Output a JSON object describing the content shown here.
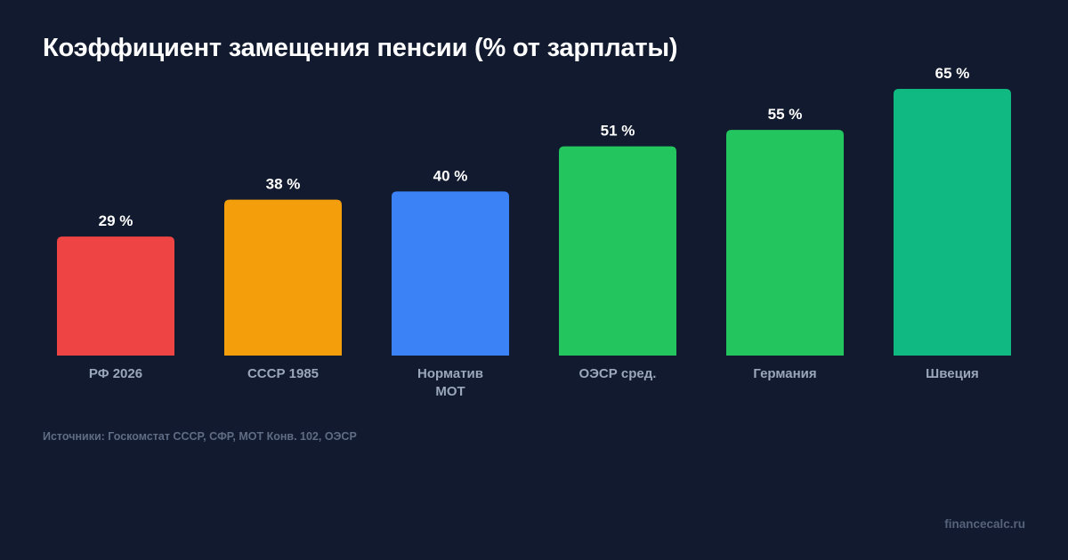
{
  "title": "Коэффициент замещения пенсии (% от зарплаты)",
  "source": "Источники: Госкомстат СССР, СФР, МОТ Конв. 102, ОЭСР",
  "watermark": "financecalc.ru",
  "chart_data": {
    "type": "bar",
    "title": "Коэффициент замещения пенсии (% от зарплаты)",
    "xlabel": "",
    "ylabel": "",
    "ylim": [
      0,
      65
    ],
    "grid": false,
    "legend": "none",
    "value_suffix": " %",
    "categories": [
      [
        "РФ 2026"
      ],
      [
        "СССР 1985"
      ],
      [
        "Норматив",
        "МОТ"
      ],
      [
        "ОЭСР сред."
      ],
      [
        "Германия"
      ],
      [
        "Швеция"
      ]
    ],
    "values": [
      29,
      38,
      40,
      51,
      55,
      65
    ],
    "colors": [
      "#ef4444",
      "#f59e0b",
      "#3b82f6",
      "#22c55e",
      "#22c55e",
      "#10b981"
    ]
  }
}
